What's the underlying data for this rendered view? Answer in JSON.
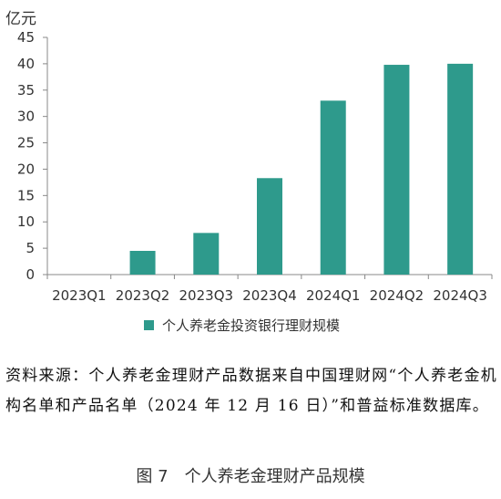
{
  "chart_data": {
    "type": "bar",
    "unit_label": "亿元",
    "categories": [
      "2023Q1",
      "2023Q2",
      "2023Q3",
      "2023Q4",
      "2024Q1",
      "2024Q2",
      "2024Q3"
    ],
    "series": [
      {
        "name": "个人养老金投资银行理财规模",
        "values": [
          0,
          4.5,
          7.9,
          18.3,
          33.0,
          39.8,
          40.0
        ]
      }
    ],
    "ylim": [
      0,
      45
    ],
    "yticks": [
      0,
      5,
      10,
      15,
      20,
      25,
      30,
      35,
      40,
      45
    ],
    "grid": false,
    "legend_position": "bottom",
    "bar_color": "#2e9a8c"
  },
  "source_text": "资料来源：个人养老金理财产品数据来自中国理财网“个人养老金机构名单和产品名单（2024 年 12 月 16 日）”和普益标准数据库。",
  "caption": {
    "number": "图 7",
    "title": "个人养老金理财产品规模"
  }
}
